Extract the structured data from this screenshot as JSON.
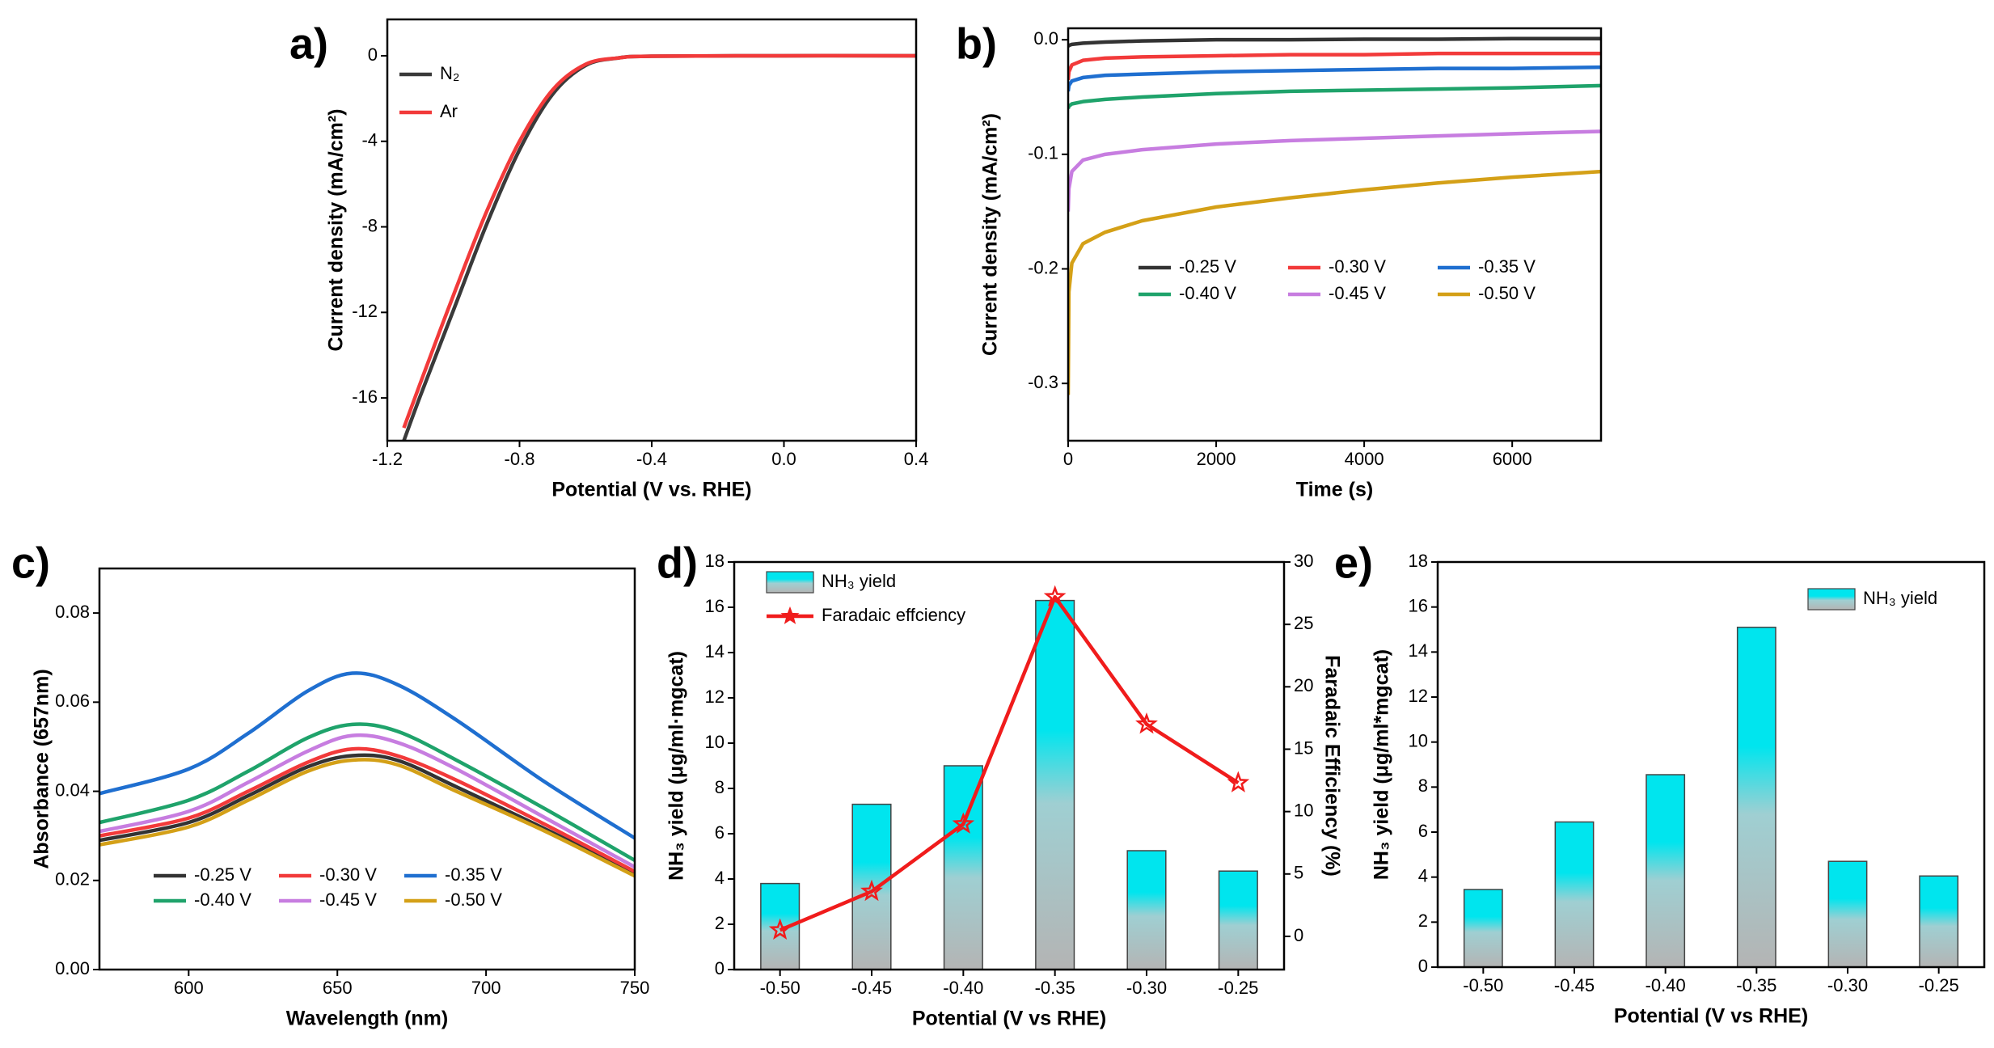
{
  "chart_data": [
    {
      "type": "line",
      "label": "a)",
      "xlabel": "Potential (V vs. RHE)",
      "ylabel": "Current density (mA/cm²)",
      "x": [
        -1.15,
        -1.1,
        -1.0,
        -0.9,
        -0.8,
        -0.7,
        -0.6,
        -0.5,
        -0.4,
        0,
        0.4
      ],
      "xlim": [
        -1.2,
        0.4
      ],
      "xticks": [
        -1.2,
        -0.8,
        -0.4,
        {
          "value": 0,
          "label": "0.0"
        },
        0.4
      ],
      "ylim": [
        -18,
        1.7
      ],
      "yticks": [
        0,
        -4,
        -8,
        -12,
        -16
      ],
      "series": [
        {
          "name": "N₂",
          "color": "#3a3a3a",
          "values": [
            -18.0,
            -15.9,
            -11.9,
            -7.9,
            -4.4,
            -1.8,
            -0.45,
            -0.1,
            -0.02,
            0,
            0
          ]
        },
        {
          "name": "Ar",
          "color": "#f23a3a",
          "values": [
            -17.4,
            -15.3,
            -11.2,
            -7.3,
            -4.0,
            -1.6,
            -0.4,
            -0.1,
            -0.02,
            0,
            0
          ]
        }
      ]
    },
    {
      "type": "line",
      "label": "b)",
      "xlabel": "Time (s)",
      "ylabel": "Current density (mA/cm²)",
      "x": [
        0,
        10,
        50,
        200,
        500,
        1000,
        2000,
        3000,
        4000,
        5000,
        6000,
        7200
      ],
      "xlim": [
        0,
        7200
      ],
      "xticks": [
        0,
        2000,
        4000,
        6000
      ],
      "ylim": [
        -0.35,
        0.01
      ],
      "yticks": [
        {
          "value": 0,
          "label": "0.0"
        },
        -0.1,
        -0.2,
        -0.3
      ],
      "series": [
        {
          "name": "-0.25 V",
          "color": "#333333",
          "values": [
            -0.006,
            -0.005,
            -0.004,
            -0.003,
            -0.002,
            -0.001,
            0,
            0,
            0.0005,
            0.0005,
            0.001,
            0.001
          ]
        },
        {
          "name": "-0.30 V",
          "color": "#f23a3a",
          "values": [
            -0.035,
            -0.028,
            -0.022,
            -0.018,
            -0.016,
            -0.015,
            -0.014,
            -0.013,
            -0.013,
            -0.012,
            -0.012,
            -0.012
          ]
        },
        {
          "name": "-0.35 V",
          "color": "#1f6fd0",
          "values": [
            -0.045,
            -0.04,
            -0.036,
            -0.033,
            -0.031,
            -0.03,
            -0.028,
            -0.027,
            -0.026,
            -0.025,
            -0.025,
            -0.024
          ]
        },
        {
          "name": "-0.40 V",
          "color": "#1fa36b",
          "values": [
            -0.06,
            -0.058,
            -0.056,
            -0.054,
            -0.052,
            -0.05,
            -0.047,
            -0.045,
            -0.044,
            -0.043,
            -0.042,
            -0.04
          ]
        },
        {
          "name": "-0.45 V",
          "color": "#c77de0",
          "values": [
            -0.15,
            -0.13,
            -0.115,
            -0.105,
            -0.1,
            -0.096,
            -0.091,
            -0.088,
            -0.086,
            -0.084,
            -0.082,
            -0.08
          ]
        },
        {
          "name": "-0.50 V",
          "color": "#d4a017",
          "values": [
            -0.31,
            -0.22,
            -0.195,
            -0.178,
            -0.168,
            -0.158,
            -0.146,
            -0.138,
            -0.131,
            -0.125,
            -0.12,
            -0.115
          ]
        }
      ]
    },
    {
      "type": "line",
      "label": "c)",
      "xlabel": "Wavelength (nm)",
      "ylabel": "Absorbance (657nm)",
      "x": [
        570,
        600,
        620,
        640,
        655,
        670,
        690,
        720,
        750
      ],
      "xlim": [
        570,
        750
      ],
      "xticks": [
        600,
        650,
        700,
        750
      ],
      "ylim": [
        0,
        0.09
      ],
      "yticks": [
        {
          "value": 0,
          "label": "0.00"
        },
        0.02,
        0.04,
        0.06,
        0.08
      ],
      "series": [
        {
          "name": "-0.25 V",
          "color": "#333333",
          "values": [
            0.029,
            0.033,
            0.039,
            0.0455,
            0.048,
            0.047,
            0.041,
            0.0315,
            0.0215
          ]
        },
        {
          "name": "-0.30 V",
          "color": "#f23a3a",
          "values": [
            0.03,
            0.034,
            0.04,
            0.0465,
            0.0495,
            0.048,
            0.0425,
            0.0325,
            0.022
          ]
        },
        {
          "name": "-0.35 V",
          "color": "#1f6fd0",
          "values": [
            0.0395,
            0.045,
            0.053,
            0.0625,
            0.0665,
            0.064,
            0.056,
            0.042,
            0.0295
          ]
        },
        {
          "name": "-0.40 V",
          "color": "#1fa36b",
          "values": [
            0.033,
            0.038,
            0.0445,
            0.052,
            0.055,
            0.0535,
            0.047,
            0.036,
            0.0245
          ]
        },
        {
          "name": "-0.45 V",
          "color": "#c77de0",
          "values": [
            0.031,
            0.0355,
            0.042,
            0.049,
            0.0525,
            0.051,
            0.045,
            0.034,
            0.023
          ]
        },
        {
          "name": "-0.50 V",
          "color": "#d4a017",
          "values": [
            0.028,
            0.032,
            0.038,
            0.0445,
            0.047,
            0.046,
            0.04,
            0.031,
            0.021
          ]
        }
      ]
    },
    {
      "type": "combo",
      "label": "d)",
      "xlabel": "Potential (V vs RHE)",
      "ylabel": "NH₃ yield (μg/ml·mgcat)",
      "y2label": "Faradaic Efficiency (%)",
      "categories": [
        "-0.50",
        "-0.45",
        "-0.40",
        "-0.35",
        "-0.30",
        "-0.25"
      ],
      "ylim": [
        0,
        18
      ],
      "yticks": [
        0,
        2,
        4,
        6,
        8,
        10,
        12,
        14,
        16,
        18
      ],
      "y2lim": [
        -2.66,
        30
      ],
      "y2ticks": [
        0,
        5,
        10,
        15,
        20,
        25,
        30
      ],
      "series": [
        {
          "name": "NH₃ yield",
          "color": "#00e5ee",
          "values": [
            3.8,
            7.3,
            9.0,
            16.3,
            5.25,
            4.35
          ]
        },
        {
          "name": "Faradaic effciency",
          "color": "#f01c1c",
          "axis": "y2",
          "marker": "star",
          "values": [
            0.5,
            3.6,
            9.0,
            27.2,
            17.0,
            12.3
          ]
        }
      ]
    },
    {
      "type": "bar",
      "label": "e)",
      "xlabel": "Potential (V vs RHE)",
      "ylabel": "NH₃ yield (μg/ml*mgcat)",
      "categories": [
        "-0.50",
        "-0.45",
        "-0.40",
        "-0.35",
        "-0.30",
        "-0.25"
      ],
      "ylim": [
        0,
        18
      ],
      "yticks": [
        0,
        2,
        4,
        6,
        8,
        10,
        12,
        14,
        16,
        18
      ],
      "series": [
        {
          "name": "NH₃ yield",
          "color": "#00e5ee",
          "values": [
            3.45,
            6.45,
            8.55,
            15.1,
            4.7,
            4.05
          ]
        }
      ]
    }
  ]
}
